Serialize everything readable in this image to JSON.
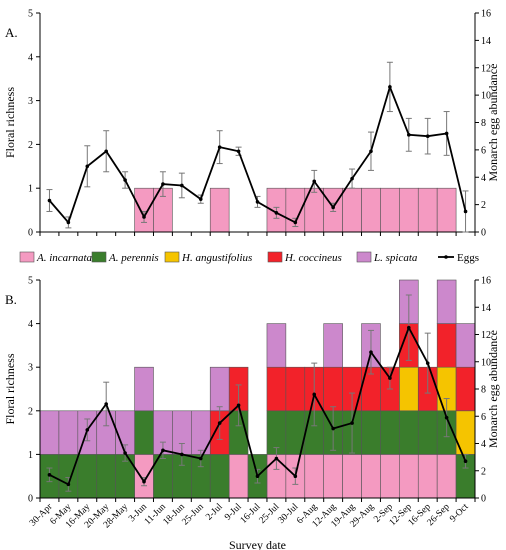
{
  "dates": [
    "30-Apr",
    "6-May",
    "16-May",
    "20-May",
    "28-May",
    "3-Jun",
    "11-Jun",
    "18-Jun",
    "25-Jun",
    "2-Jul",
    "9-Jul",
    "16-Jul",
    "25-Jul",
    "30-Jul",
    "6-Aug",
    "12-Aug",
    "19-Aug",
    "29-Aug",
    "2-Sep",
    "12-Sep",
    "16-Sep",
    "26-Sep",
    "9-Oct"
  ],
  "legend": [
    {
      "key": "incarnata",
      "label": "A. incarnata",
      "color": "#f49ac1",
      "italic": true
    },
    {
      "key": "perennis",
      "label": "A. perennis",
      "color": "#3a7d2c",
      "italic": true
    },
    {
      "key": "angustifolius",
      "label": "H. angustifolius",
      "color": "#f5c400",
      "italic": true
    },
    {
      "key": "coccineus",
      "label": "H. coccineus",
      "color": "#f2222a",
      "italic": true
    },
    {
      "key": "spicata",
      "label": "L. spicata",
      "color": "#cc88cc",
      "italic": true
    },
    {
      "key": "eggs",
      "label": "Eggs",
      "color": "#000000",
      "italic": false
    }
  ],
  "chart_data": [
    {
      "panel": "A.",
      "type": "bar+line",
      "xlabel": "",
      "ylabel": "Floral richness",
      "y2label": "Monarch egg abundance",
      "ylim": [
        0,
        5
      ],
      "y2lim": [
        0,
        16
      ],
      "yticks": [
        0,
        1,
        2,
        3,
        4,
        5
      ],
      "y2ticks": [
        0,
        2,
        4,
        6,
        8,
        10,
        12,
        14,
        16
      ],
      "show_xticklabels": false,
      "series": [
        {
          "name": "A. incarnata",
          "values": [
            0,
            0,
            0,
            0,
            0,
            1,
            1,
            0,
            0,
            1,
            0,
            0,
            1,
            1,
            1,
            1,
            1,
            1,
            1,
            1,
            1,
            1,
            0
          ]
        }
      ],
      "eggs": [
        2.3,
        0.7,
        4.8,
        5.9,
        3.8,
        1.1,
        3.5,
        3.4,
        2.4,
        6.2,
        5.9,
        2.2,
        1.4,
        0.7,
        3.7,
        1.8,
        3.9,
        5.9,
        10.6,
        7.1,
        7.0,
        7.2,
        1.5
      ],
      "eggs_err": [
        0.8,
        0.4,
        1.5,
        1.5,
        0.6,
        0.4,
        0.9,
        0.9,
        0.3,
        1.2,
        0.3,
        0.4,
        0.4,
        0.3,
        0.8,
        0.3,
        0.7,
        1.4,
        1.8,
        1.2,
        1.3,
        1.6,
        1.5
      ]
    },
    {
      "panel": "B.",
      "type": "bar+line",
      "xlabel": "Survey date",
      "ylabel": "Floral richness",
      "y2label": "Monarch egg abundance",
      "ylim": [
        0,
        5
      ],
      "y2lim": [
        0,
        16
      ],
      "yticks": [
        0,
        1,
        2,
        3,
        4,
        5
      ],
      "y2ticks": [
        0,
        2,
        4,
        6,
        8,
        10,
        12,
        14,
        16
      ],
      "show_xticklabels": true,
      "series": [
        {
          "name": "A. incarnata",
          "values": [
            0,
            0,
            0,
            0,
            0,
            1,
            0,
            0,
            0,
            0,
            1,
            0,
            1,
            1,
            1,
            1,
            1,
            1,
            1,
            1,
            1,
            1,
            0
          ]
        },
        {
          "name": "A. perennis",
          "values": [
            1,
            1,
            1,
            1,
            1,
            1,
            1,
            1,
            1,
            1,
            1,
            1,
            1,
            1,
            1,
            1,
            1,
            1,
            1,
            1,
            1,
            1,
            1
          ]
        },
        {
          "name": "H. angustifolius",
          "values": [
            0,
            0,
            0,
            0,
            0,
            0,
            0,
            0,
            0,
            0,
            0,
            0,
            0,
            0,
            0,
            0,
            0,
            0,
            0,
            1,
            0,
            1,
            1
          ]
        },
        {
          "name": "H. coccineus",
          "values": [
            0,
            0,
            0,
            0,
            0,
            0,
            0,
            0,
            0,
            1,
            1,
            0,
            1,
            1,
            1,
            1,
            1,
            1,
            1,
            1,
            1,
            1,
            1
          ]
        },
        {
          "name": "L. spicata",
          "values": [
            1,
            1,
            1,
            1,
            1,
            1,
            1,
            1,
            1,
            1,
            0,
            0,
            1,
            0,
            0,
            1,
            0,
            1,
            0,
            1,
            0,
            1,
            1
          ]
        }
      ],
      "eggs": [
        1.7,
        1.0,
        5.0,
        6.9,
        3.3,
        1.2,
        3.5,
        3.2,
        2.9,
        5.5,
        6.8,
        1.6,
        2.9,
        1.6,
        7.6,
        5.1,
        5.5,
        10.7,
        8.8,
        12.5,
        9.9,
        5.9,
        2.7
      ],
      "eggs_err": [
        0.5,
        0.5,
        0.8,
        1.6,
        0.6,
        0.3,
        0.6,
        0.8,
        0.6,
        1.2,
        1.5,
        0.5,
        0.8,
        0.6,
        2.3,
        1.6,
        2.2,
        1.6,
        0.8,
        2.4,
        2.2,
        1.4,
        0.5
      ]
    }
  ]
}
